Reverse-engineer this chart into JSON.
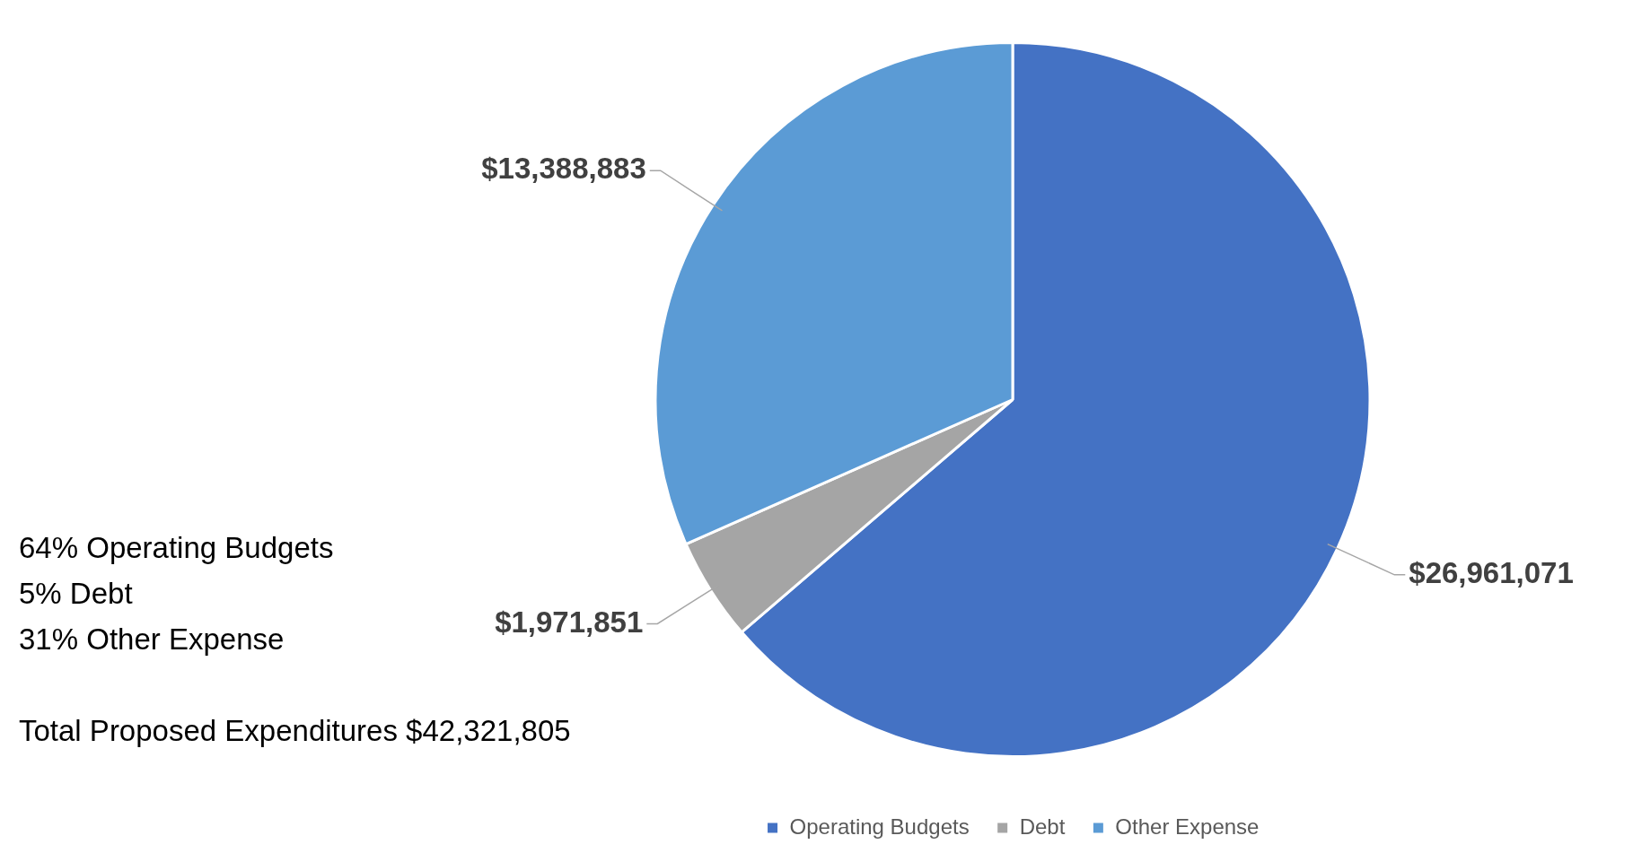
{
  "chart_data": {
    "type": "pie",
    "categories": [
      "Operating Budgets",
      "Debt",
      "Other Expense"
    ],
    "values": [
      26961071,
      1971851,
      13388883
    ],
    "colors": [
      "#4472c4",
      "#a5a5a5",
      "#5b9bd5"
    ],
    "value_labels": [
      "$26,961,071",
      "$1,971,851",
      "$13,388,883"
    ],
    "annotations": [
      "64% Operating Budgets",
      "5% Debt",
      "31% Other Expense",
      "Total Proposed Expenditures $42,321,805"
    ],
    "legend": "bottom"
  }
}
